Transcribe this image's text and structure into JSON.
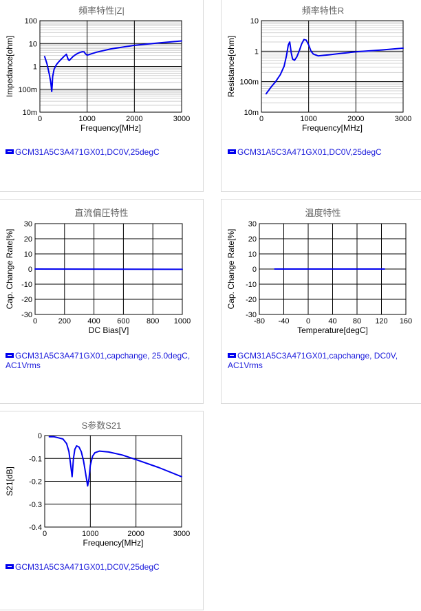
{
  "charts": [
    {
      "title": "頻率特性|Z|",
      "legend": "GCM31A5C3A471GX01,DC0V,25degC",
      "chart_data": {
        "type": "line",
        "xlabel": "Frequency[MHz]",
        "ylabel": "Impedance[ohm]",
        "xlim": [
          0,
          3000
        ],
        "ylim": [
          0.01,
          100
        ],
        "yscale": "log",
        "xticks": [
          0,
          1000,
          2000,
          3000
        ],
        "xtick_labels": [
          "0",
          "1000",
          "2000",
          "3000"
        ],
        "yticks": [
          0.01,
          0.1,
          1,
          10,
          100
        ],
        "ytick_labels": [
          "10m",
          "100m",
          "1",
          "10",
          "100"
        ],
        "series": [
          {
            "name": "GCM31A5C3A471GX01,DC0V,25degC",
            "color": "#0000ee",
            "x": [
              100,
              150,
              200,
              230,
              250,
              260,
              270,
              300,
              350,
              400,
              500,
              560,
              600,
              620,
              650,
              700,
              750,
              800,
              850,
              900,
              940,
              960,
              1000,
              1200,
              1500,
              2000,
              2500,
              3000
            ],
            "y": [
              2.7,
              1.3,
              0.45,
              0.2,
              0.08,
              0.15,
              0.35,
              0.75,
              1.2,
              1.6,
              2.6,
              3.4,
              2.0,
              1.8,
              2.1,
              2.7,
              3.2,
              3.7,
              4.1,
              4.4,
              4.3,
              3.6,
              3.1,
              4.2,
              5.8,
              8.3,
              10.5,
              13.0
            ]
          }
        ]
      }
    },
    {
      "title": "頻率特性R",
      "legend": "GCM31A5C3A471GX01,DC0V,25degC",
      "chart_data": {
        "type": "line",
        "xlabel": "Frequency[MHz]",
        "ylabel": "Resistance[ohm]",
        "xlim": [
          0,
          3000
        ],
        "ylim": [
          0.01,
          10
        ],
        "yscale": "log",
        "xticks": [
          0,
          1000,
          2000,
          3000
        ],
        "xtick_labels": [
          "0",
          "1000",
          "2000",
          "3000"
        ],
        "yticks": [
          0.01,
          0.1,
          1,
          10
        ],
        "ytick_labels": [
          "10m",
          "100m",
          "1",
          "10"
        ],
        "series": [
          {
            "name": "GCM31A5C3A471GX01,DC0V,25degC",
            "color": "#0000ee",
            "x": [
              100,
              200,
              300,
              400,
              480,
              530,
              570,
              600,
              630,
              660,
              700,
              750,
              800,
              850,
              900,
              950,
              1000,
              1050,
              1100,
              1200,
              1400,
              1700,
              2000,
              2500,
              3000
            ],
            "y": [
              0.04,
              0.065,
              0.1,
              0.17,
              0.32,
              0.7,
              1.6,
              2.0,
              0.9,
              0.55,
              0.5,
              0.65,
              1.0,
              1.7,
              2.4,
              2.3,
              1.6,
              1.0,
              0.8,
              0.7,
              0.75,
              0.85,
              0.95,
              1.08,
              1.25
            ]
          }
        ]
      }
    },
    {
      "title": "直流偏圧特性",
      "legend": "GCM31A5C3A471GX01,capchange, 25.0degC, AC1Vrms",
      "chart_data": {
        "type": "line",
        "xlabel": "DC Bias[V]",
        "ylabel": "Cap. Change Rate[%]",
        "xlim": [
          0,
          1000
        ],
        "ylim": [
          -30,
          30
        ],
        "xticks": [
          0,
          200,
          400,
          600,
          800,
          1000
        ],
        "xtick_labels": [
          "0",
          "200",
          "400",
          "600",
          "800",
          "1000"
        ],
        "yticks": [
          -30,
          -20,
          -10,
          0,
          10,
          20,
          30
        ],
        "ytick_labels": [
          "-30",
          "-20",
          "-10",
          "0",
          "10",
          "20",
          "30"
        ],
        "series": [
          {
            "name": "GCM31A5C3A471GX01,capchange, 25.0degC, AC1Vrms",
            "color": "#0000ee",
            "x": [
              0,
              1000
            ],
            "y": [
              0,
              -0.2
            ]
          }
        ]
      }
    },
    {
      "title": "温度特性",
      "legend": "GCM31A5C3A471GX01,capchange, DC0V, AC1Vrms",
      "chart_data": {
        "type": "line",
        "xlabel": "Temperature[degC]",
        "ylabel": "Cap. Change Rate[%]",
        "xlim": [
          -80,
          160
        ],
        "ylim": [
          -30,
          30
        ],
        "xticks": [
          -80,
          -40,
          0,
          40,
          80,
          120,
          160
        ],
        "xtick_labels": [
          "-80",
          "-40",
          "0",
          "40",
          "80",
          "120",
          "160"
        ],
        "yticks": [
          -30,
          -20,
          -10,
          0,
          10,
          20,
          30
        ],
        "ytick_labels": [
          "-30",
          "-20",
          "-10",
          "0",
          "10",
          "20",
          "30"
        ],
        "series": [
          {
            "name": "GCM31A5C3A471GX01,capchange, DC0V, AC1Vrms",
            "color": "#0000ee",
            "x": [
              -55,
              125
            ],
            "y": [
              0,
              0
            ]
          }
        ]
      }
    },
    {
      "title": "S参数S21",
      "legend": "GCM31A5C3A471GX01,DC0V,25degC",
      "chart_data": {
        "type": "line",
        "xlabel": "Frequency[MHz]",
        "ylabel": "S21[dB]",
        "xlim": [
          0,
          3000
        ],
        "ylim": [
          -0.4,
          0
        ],
        "xticks": [
          0,
          1000,
          2000,
          3000
        ],
        "xtick_labels": [
          "0",
          "1000",
          "2000",
          "3000"
        ],
        "yticks": [
          -0.4,
          -0.3,
          -0.2,
          -0.1,
          0
        ],
        "ytick_labels": [
          "-0.4",
          "-0.3",
          "-0.2",
          "-0.1",
          "0"
        ],
        "series": [
          {
            "name": "GCM31A5C3A471GX01,DC0V,25degC",
            "color": "#0000ee",
            "x": [
              100,
              200,
              300,
              400,
              480,
              530,
              570,
              600,
              630,
              660,
              700,
              750,
              800,
              850,
              900,
              940,
              970,
              1000,
              1050,
              1100,
              1200,
              1400,
              1700,
              2000,
              2500,
              3000
            ],
            "y": [
              -0.005,
              -0.005,
              -0.01,
              -0.015,
              -0.035,
              -0.07,
              -0.13,
              -0.18,
              -0.1,
              -0.06,
              -0.045,
              -0.05,
              -0.07,
              -0.11,
              -0.17,
              -0.22,
              -0.19,
              -0.13,
              -0.09,
              -0.075,
              -0.068,
              -0.072,
              -0.085,
              -0.105,
              -0.14,
              -0.18
            ]
          }
        ]
      }
    }
  ]
}
